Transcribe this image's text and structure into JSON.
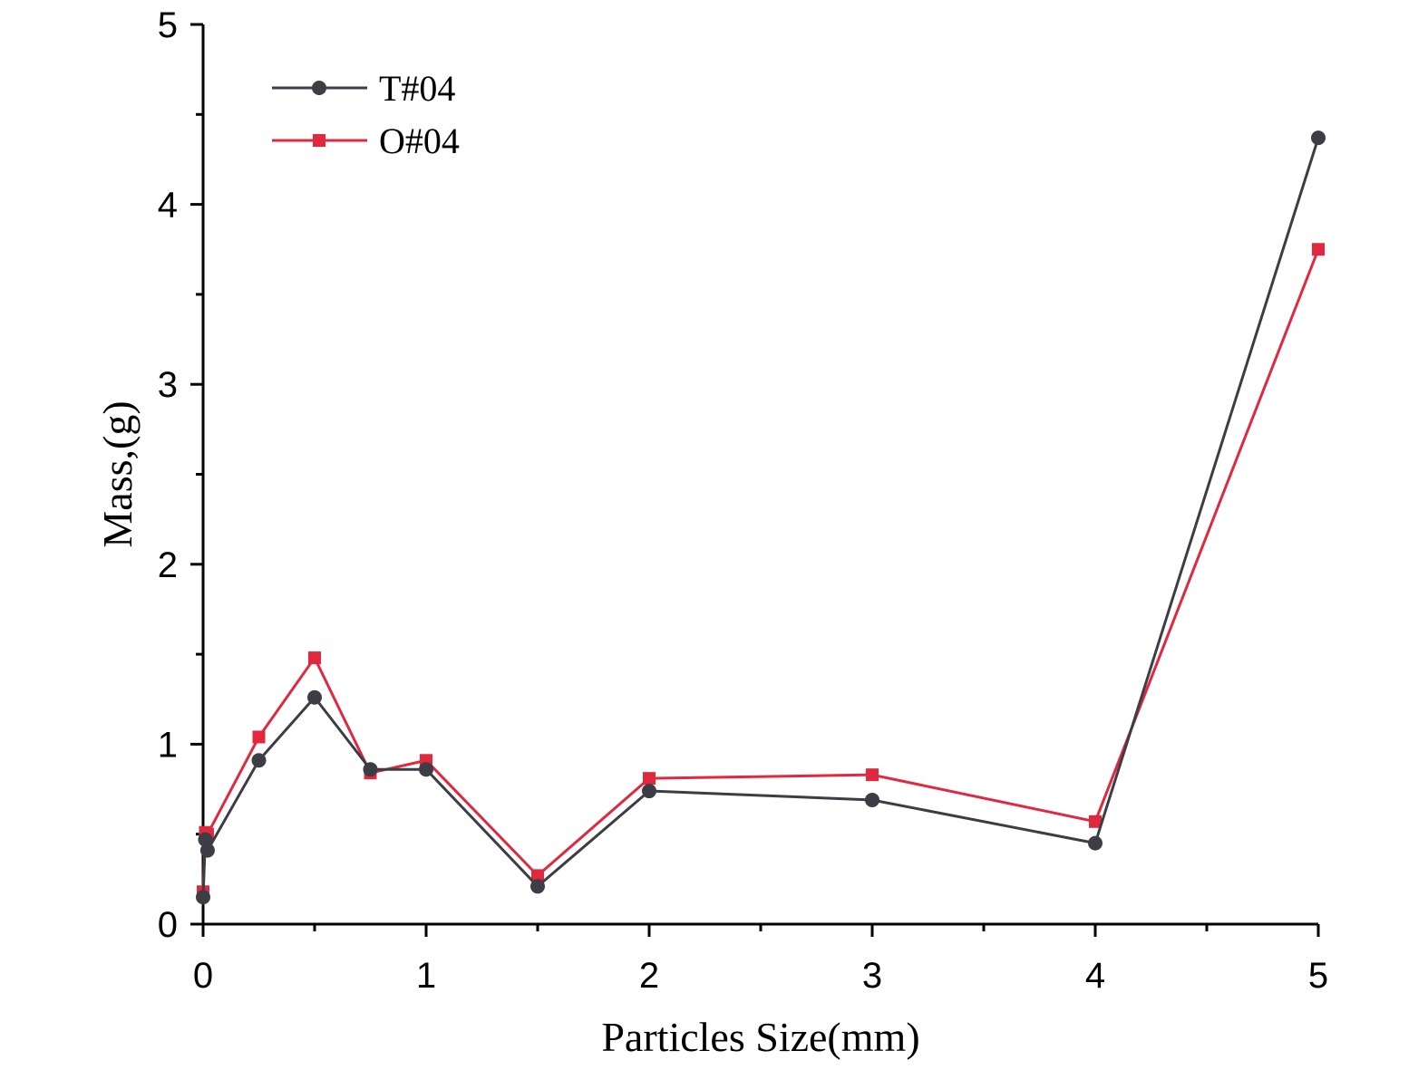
{
  "chart_data": {
    "type": "line",
    "title": "",
    "xlabel": "Particles Size(mm)",
    "ylabel": "Mass,(g)",
    "xlim": [
      0,
      5
    ],
    "ylim": [
      0,
      5
    ],
    "x_ticks": [
      "0",
      "1",
      "2",
      "3",
      "4",
      "5"
    ],
    "y_ticks": [
      "0",
      "1",
      "2",
      "3",
      "4",
      "5"
    ],
    "grid": false,
    "legend_position": "top-left",
    "series": [
      {
        "name": "T#04",
        "color": "#3d3d45",
        "marker": "circle",
        "x": [
          0,
          0.01,
          0.02,
          0.25,
          0.5,
          0.75,
          1.0,
          1.5,
          2.0,
          3.0,
          4.0,
          5.0
        ],
        "y": [
          0.15,
          0.47,
          0.41,
          0.91,
          1.26,
          0.86,
          0.86,
          0.21,
          0.74,
          0.69,
          0.45,
          4.37
        ]
      },
      {
        "name": "O#04",
        "color": "#e0283e",
        "marker": "square",
        "x": [
          0,
          0.01,
          0.02,
          0.25,
          0.5,
          0.75,
          1.0,
          1.5,
          2.0,
          3.0,
          4.0,
          5.0
        ],
        "y": [
          0.18,
          0.51,
          0.5,
          1.04,
          1.48,
          0.84,
          0.91,
          0.27,
          0.81,
          0.83,
          0.57,
          3.75
        ]
      }
    ]
  }
}
